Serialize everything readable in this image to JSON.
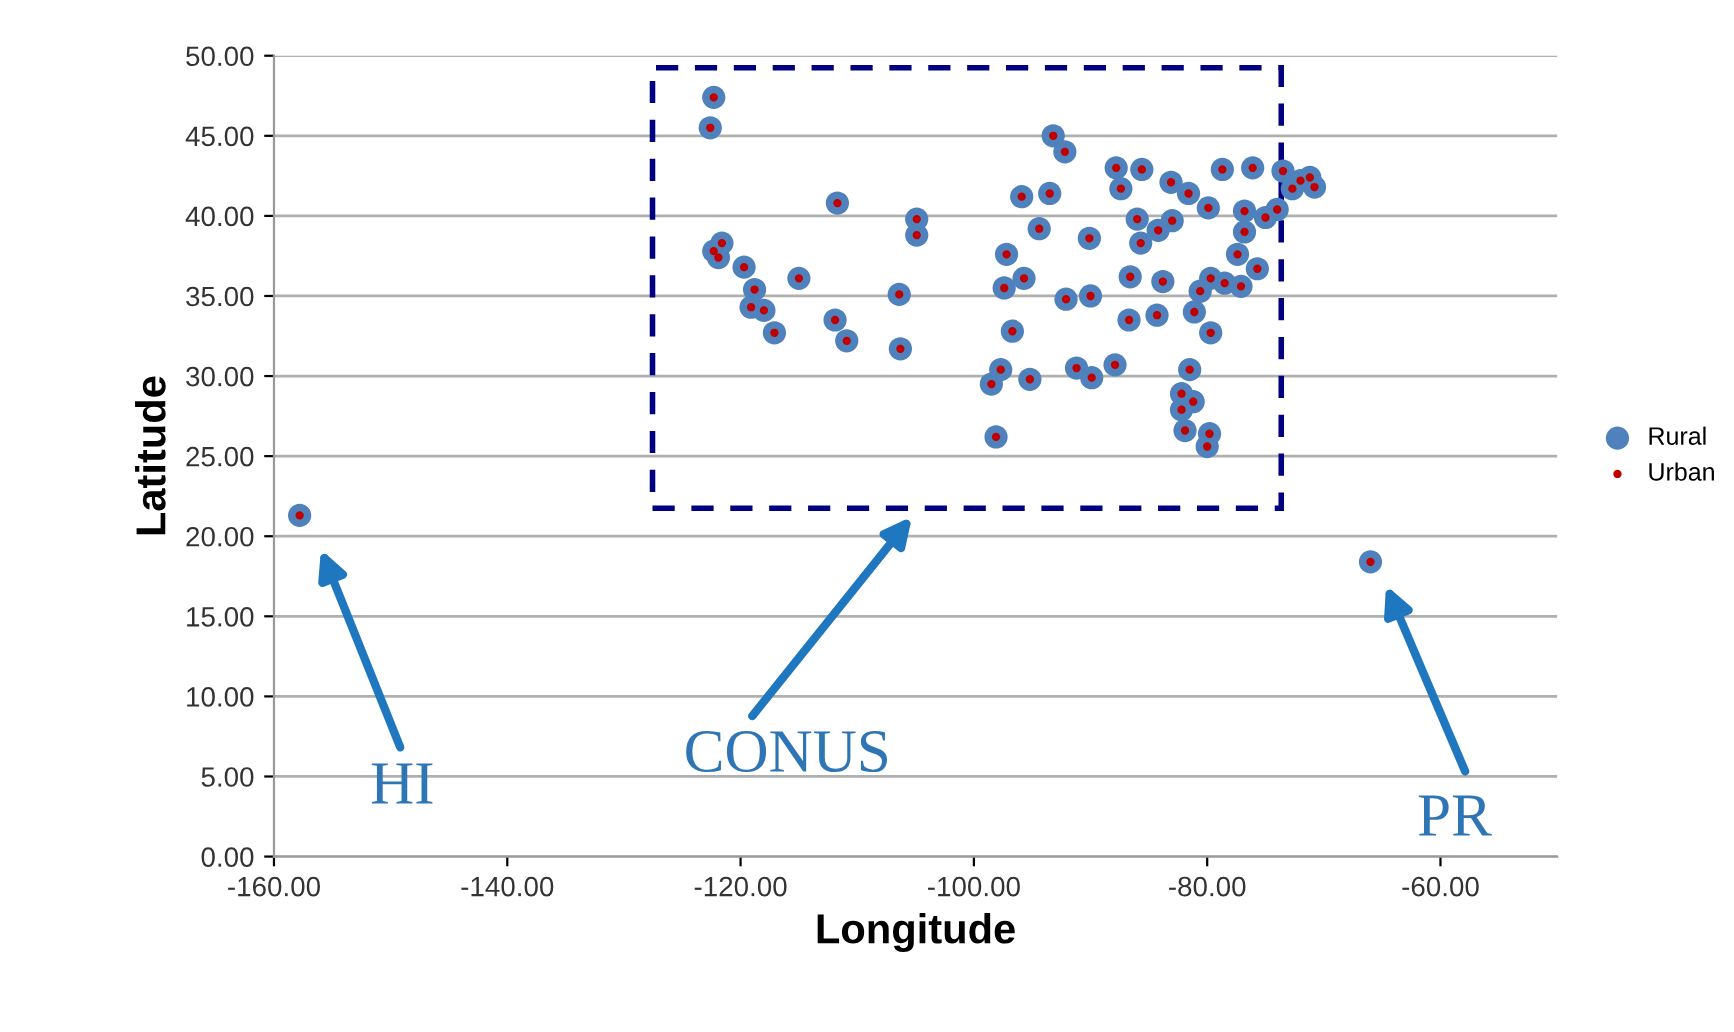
{
  "chart_data": {
    "type": "scatter",
    "xlabel": "Longitude",
    "ylabel": "Latitude",
    "xlim": [
      -160,
      -50
    ],
    "ylim": [
      0,
      50
    ],
    "xticks": [
      {
        "value": -160,
        "label": "-160.00"
      },
      {
        "value": -140,
        "label": "-140.00"
      },
      {
        "value": -120,
        "label": "-120.00"
      },
      {
        "value": -100,
        "label": "-100.00"
      },
      {
        "value": -80,
        "label": "-80.00"
      },
      {
        "value": -60,
        "label": "-60.00"
      }
    ],
    "yticks": [
      {
        "value": 0,
        "label": "0.00"
      },
      {
        "value": 5,
        "label": "5.00"
      },
      {
        "value": 10,
        "label": "10.00"
      },
      {
        "value": 15,
        "label": "15.00"
      },
      {
        "value": 20,
        "label": "20.00"
      },
      {
        "value": 25,
        "label": "25.00"
      },
      {
        "value": 30,
        "label": "30.00"
      },
      {
        "value": 35,
        "label": "35.00"
      },
      {
        "value": 40,
        "label": "40.00"
      },
      {
        "value": 45,
        "label": "45.00"
      },
      {
        "value": 50,
        "label": "50.00"
      }
    ],
    "grid": "y",
    "legend": "right",
    "marker": "circle",
    "x": [
      -157.8,
      -66.0,
      -122.3,
      -122.6,
      -111.7,
      -104.9,
      -104.9,
      -122.3,
      -121.6,
      -121.9,
      -119.7,
      -115.0,
      -118.8,
      -119.1,
      -118.0,
      -117.1,
      -111.9,
      -110.9,
      -106.4,
      -106.3,
      -97.2,
      -97.4,
      -95.7,
      -96.7,
      -97.7,
      -98.5,
      -95.2,
      -98.1,
      -95.9,
      -93.5,
      -93.2,
      -92.2,
      -94.4,
      -90.1,
      -92.1,
      -90.0,
      -91.2,
      -89.9,
      -87.9,
      -87.8,
      -85.6,
      -87.4,
      -86.0,
      -85.7,
      -86.6,
      -86.7,
      -84.3,
      -83.8,
      -84.2,
      -83.0,
      -83.1,
      -81.6,
      -79.9,
      -78.7,
      -76.1,
      -73.5,
      -71.2,
      -70.8,
      -72.7,
      -74.0,
      -75.0,
      -76.8,
      -76.8,
      -77.4,
      -75.7,
      -77.1,
      -78.5,
      -79.7,
      -80.6,
      -81.1,
      -79.7,
      -81.5,
      -82.2,
      -81.2,
      -82.2,
      -81.9,
      -79.8,
      -80.0,
      -72.0
    ],
    "series": [
      {
        "name": "Rural",
        "color": "#4f81bd",
        "values": [
          21.3,
          18.4,
          47.4,
          45.5,
          40.8,
          39.8,
          38.8,
          37.8,
          38.3,
          37.4,
          36.8,
          36.1,
          35.4,
          34.3,
          34.1,
          32.7,
          33.5,
          32.2,
          35.1,
          31.7,
          37.6,
          35.5,
          36.1,
          32.8,
          30.4,
          29.5,
          29.8,
          26.2,
          41.2,
          41.4,
          45.0,
          44.0,
          39.2,
          38.6,
          34.8,
          35.0,
          30.5,
          29.9,
          30.7,
          43.0,
          42.9,
          41.7,
          39.8,
          38.3,
          36.2,
          33.5,
          33.8,
          35.9,
          39.1,
          39.7,
          42.1,
          41.4,
          40.5,
          42.9,
          43.0,
          42.8,
          42.4,
          41.8,
          41.7,
          40.4,
          39.9,
          40.3,
          39.0,
          37.6,
          36.7,
          35.6,
          35.8,
          36.1,
          35.3,
          34.0,
          32.7,
          30.4,
          28.9,
          28.4,
          27.9,
          26.6,
          26.4,
          25.6,
          42.2
        ]
      },
      {
        "name": "Urban",
        "color": "#c00000",
        "values": [
          21.3,
          18.4,
          47.4,
          45.5,
          40.8,
          39.8,
          38.8,
          37.8,
          38.3,
          37.4,
          36.8,
          36.1,
          35.4,
          34.3,
          34.1,
          32.7,
          33.5,
          32.2,
          35.1,
          31.7,
          37.6,
          35.5,
          36.1,
          32.8,
          30.4,
          29.5,
          29.8,
          26.2,
          41.2,
          41.4,
          45.0,
          44.0,
          39.2,
          38.6,
          34.8,
          35.0,
          30.5,
          29.9,
          30.7,
          43.0,
          42.9,
          41.7,
          39.8,
          38.3,
          36.2,
          33.5,
          33.8,
          35.9,
          39.1,
          39.7,
          42.1,
          41.4,
          40.5,
          42.9,
          43.0,
          42.8,
          42.4,
          41.8,
          41.7,
          40.4,
          39.9,
          40.3,
          39.0,
          37.6,
          36.7,
          35.6,
          35.8,
          36.1,
          35.3,
          34.0,
          32.7,
          30.4,
          28.9,
          28.4,
          27.9,
          26.6,
          26.4,
          25.6,
          42.2
        ]
      }
    ],
    "annotations": [
      "HI",
      "CONUS",
      "PR"
    ]
  }
}
